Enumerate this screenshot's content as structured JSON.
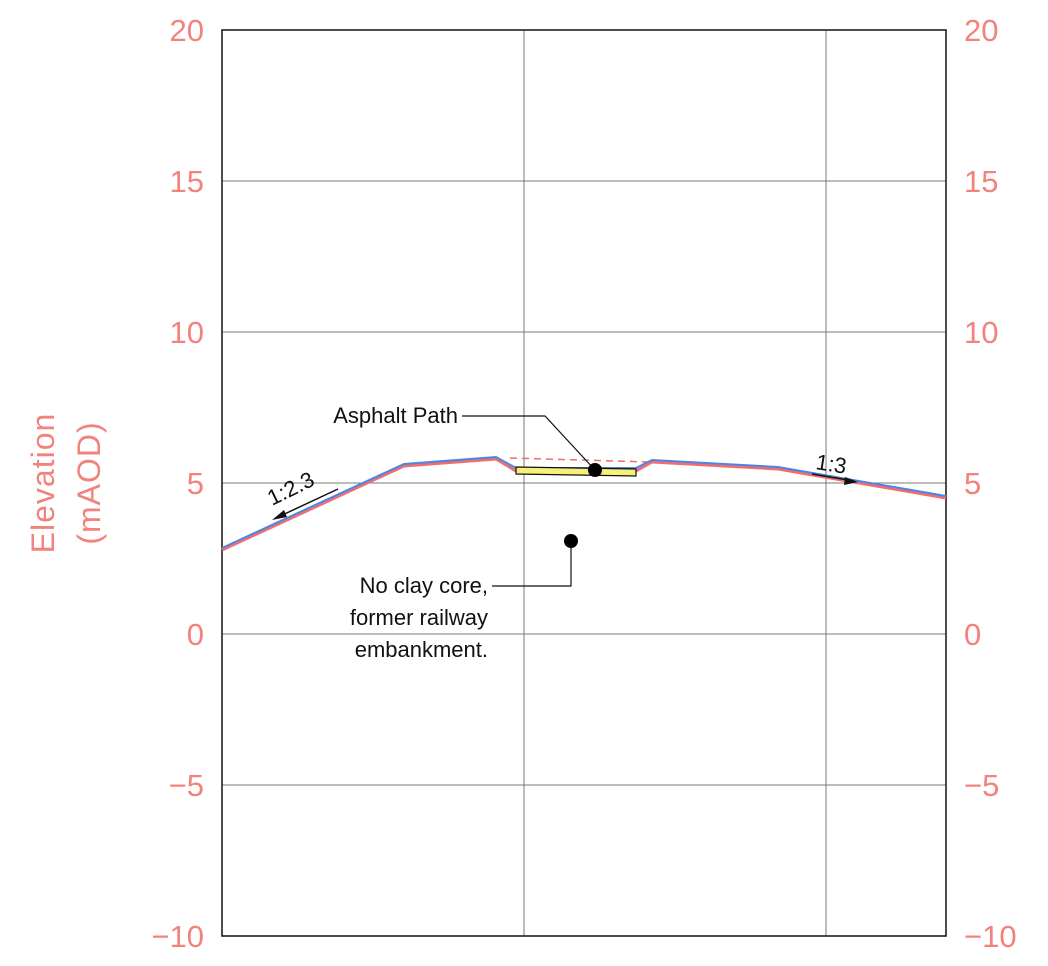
{
  "chart_data": {
    "type": "cross-section",
    "ylabel_line1": "Elevation",
    "ylabel_line2": "(mAOD)",
    "ylim": [
      -10,
      20
    ],
    "y_ticks": [
      {
        "value": 20,
        "label": "20"
      },
      {
        "value": 15,
        "label": "15"
      },
      {
        "value": 10,
        "label": "10"
      },
      {
        "value": 5,
        "label": "5"
      },
      {
        "value": 0,
        "label": "0"
      },
      {
        "value": -5,
        "label": "−5"
      },
      {
        "value": -10,
        "label": "−10"
      }
    ],
    "ground_profile": [
      [
        0,
        2.8
      ],
      [
        6,
        5.6
      ],
      [
        9.1,
        5.8
      ],
      [
        9.6,
        5.4
      ],
      [
        13.8,
        5.4
      ],
      [
        14.3,
        5.7
      ],
      [
        18.5,
        5.5
      ],
      [
        24,
        4.5
      ]
    ],
    "existing_ground_dashed": [
      [
        9.5,
        5.9
      ],
      [
        14.2,
        5.7
      ]
    ],
    "slope_labels": [
      {
        "text": "1:2.3"
      },
      {
        "text": "1:3"
      }
    ],
    "annotations": [
      {
        "line1": "Asphalt Path"
      },
      {
        "line1": "No clay core,",
        "line2": "former railway",
        "line3": "embankment."
      }
    ],
    "colors": {
      "axis_labels": "#f2827c",
      "profile": "#4a86e8",
      "profile_dash": "#f26d6d",
      "path_fill": "#f5f07a",
      "grid": "#7a7a7a"
    }
  }
}
